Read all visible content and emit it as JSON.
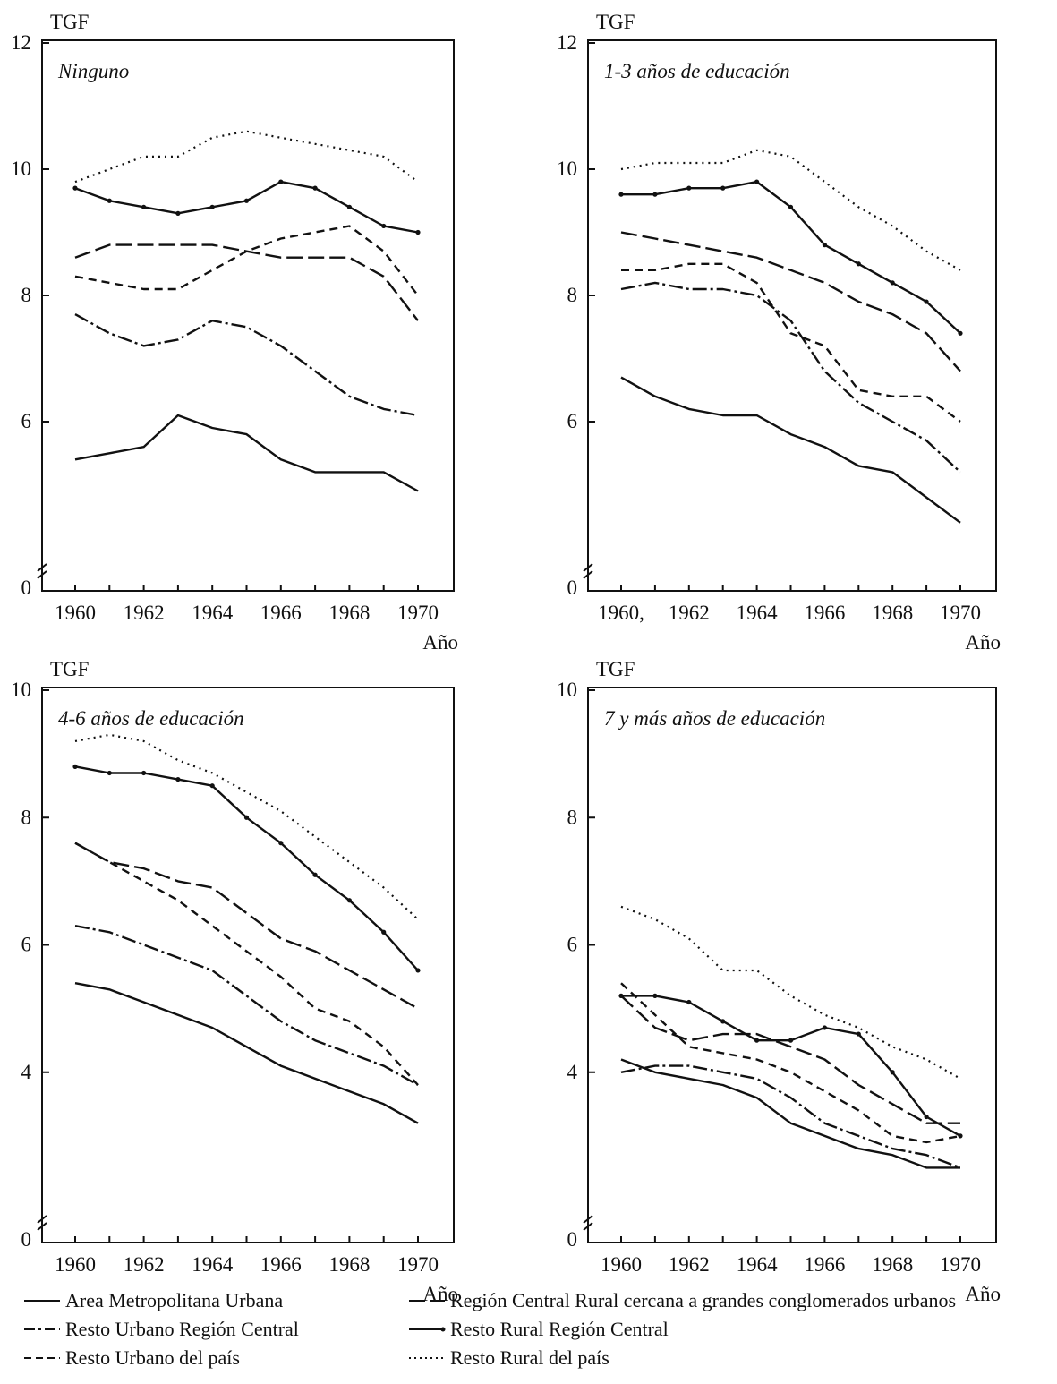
{
  "chart_data": [
    {
      "type": "line",
      "title": "Ninguno",
      "ylabel": "TGF",
      "xlabel": "Año",
      "x": [
        1960,
        1961,
        1962,
        1963,
        1964,
        1965,
        1966,
        1967,
        1968,
        1969,
        1970
      ],
      "xticks": [
        "1960",
        "1962",
        "1964",
        "1966",
        "1968",
        "1970"
      ],
      "yticks": [
        "0",
        "6",
        "8",
        "10",
        "12"
      ],
      "ylim": [
        4.0,
        12
      ],
      "axis_break": true,
      "series": [
        {
          "name": "Area Metropolitana Urbana",
          "values": [
            5.4,
            5.5,
            5.6,
            6.1,
            5.9,
            5.8,
            5.4,
            5.2,
            5.2,
            5.2,
            4.9
          ]
        },
        {
          "name": "Resto Urbano Región Central",
          "values": [
            7.7,
            7.4,
            7.2,
            7.3,
            7.6,
            7.5,
            7.2,
            6.8,
            6.4,
            6.2,
            6.1
          ]
        },
        {
          "name": "Resto Urbano del país",
          "values": [
            8.3,
            8.2,
            8.1,
            8.1,
            8.4,
            8.7,
            8.9,
            9.0,
            9.1,
            8.7,
            8.0
          ]
        },
        {
          "name": "Región Central Rural cercana a grandes conglomerados urbanos",
          "values": [
            8.6,
            8.8,
            8.8,
            8.8,
            8.8,
            8.7,
            8.6,
            8.6,
            8.6,
            8.3,
            7.6
          ]
        },
        {
          "name": "Resto Rural Región Central",
          "values": [
            9.7,
            9.5,
            9.4,
            9.3,
            9.4,
            9.5,
            9.8,
            9.7,
            9.4,
            9.1,
            9.0
          ]
        },
        {
          "name": "Resto Rural del país",
          "values": [
            9.8,
            10.0,
            10.2,
            10.2,
            10.5,
            10.6,
            10.5,
            10.4,
            10.3,
            10.2,
            9.8
          ]
        }
      ]
    },
    {
      "type": "line",
      "title": "1-3 años de educación",
      "ylabel": "TGF",
      "xlabel": "Año",
      "x": [
        1960,
        1961,
        1962,
        1963,
        1964,
        1965,
        1966,
        1967,
        1968,
        1969,
        1970
      ],
      "xticks": [
        "1960,",
        "1962",
        "1964",
        "1966",
        "1968",
        "1970"
      ],
      "yticks": [
        "0",
        "6",
        "8",
        "10",
        "12"
      ],
      "ylim": [
        4.0,
        12
      ],
      "axis_break": true,
      "series": [
        {
          "name": "Area Metropolitana Urbana",
          "values": [
            6.7,
            6.4,
            6.2,
            6.1,
            6.1,
            5.8,
            5.6,
            5.3,
            5.2,
            4.8,
            4.4
          ]
        },
        {
          "name": "Resto Urbano Región Central",
          "values": [
            8.1,
            8.2,
            8.1,
            8.1,
            8.0,
            7.6,
            6.8,
            6.3,
            6.0,
            5.7,
            5.2
          ]
        },
        {
          "name": "Resto Urbano del país",
          "values": [
            8.4,
            8.4,
            8.5,
            8.5,
            8.2,
            7.4,
            7.2,
            6.5,
            6.4,
            6.4,
            6.0
          ]
        },
        {
          "name": "Región Central Rural cercana a grandes conglomerados urbanos",
          "values": [
            9.0,
            8.9,
            8.8,
            8.7,
            8.6,
            8.4,
            8.2,
            7.9,
            7.7,
            7.4,
            6.8
          ]
        },
        {
          "name": "Resto Rural Región Central",
          "values": [
            9.6,
            9.6,
            9.7,
            9.7,
            9.8,
            9.4,
            8.8,
            8.5,
            8.2,
            7.9,
            7.4
          ]
        },
        {
          "name": "Resto Rural del país",
          "values": [
            10.0,
            10.1,
            10.1,
            10.1,
            10.3,
            10.2,
            9.8,
            9.4,
            9.1,
            8.7,
            8.4
          ]
        }
      ]
    },
    {
      "type": "line",
      "title": "4-6 años de educación",
      "ylabel": "TGF",
      "xlabel": "Año",
      "x": [
        1960,
        1961,
        1962,
        1963,
        1964,
        1965,
        1966,
        1967,
        1968,
        1969,
        1970
      ],
      "xticks": [
        "1960",
        "1962",
        "1964",
        "1966",
        "1968",
        "1970"
      ],
      "yticks": [
        "0",
        "4",
        "6",
        "8",
        "10"
      ],
      "ylim": [
        2.0,
        10
      ],
      "axis_break": true,
      "series": [
        {
          "name": "Area Metropolitana Urbana",
          "values": [
            5.4,
            5.3,
            5.1,
            4.9,
            4.7,
            4.4,
            4.1,
            3.9,
            3.7,
            3.5,
            3.2
          ]
        },
        {
          "name": "Resto Urbano Región Central",
          "values": [
            6.3,
            6.2,
            6.0,
            5.8,
            5.6,
            5.2,
            4.8,
            4.5,
            4.3,
            4.1,
            3.8
          ]
        },
        {
          "name": "Resto Urbano del país",
          "values": [
            7.6,
            7.3,
            7.0,
            6.7,
            6.3,
            5.9,
            5.5,
            5.0,
            4.8,
            4.4,
            3.8
          ]
        },
        {
          "name": "Región Central Rural cercana a grandes conglomerados urbanos",
          "values": [
            7.6,
            7.3,
            7.2,
            7.0,
            6.9,
            6.5,
            6.1,
            5.9,
            5.6,
            5.3,
            5.0
          ]
        },
        {
          "name": "Resto Rural Región Central",
          "values": [
            8.8,
            8.7,
            8.7,
            8.6,
            8.5,
            8.0,
            7.6,
            7.1,
            6.7,
            6.2,
            5.6
          ]
        },
        {
          "name": "Resto Rural del país",
          "values": [
            9.2,
            9.3,
            9.2,
            8.9,
            8.7,
            8.4,
            8.1,
            7.7,
            7.3,
            6.9,
            6.4
          ]
        }
      ]
    },
    {
      "type": "line",
      "title": "7 y más años de educación",
      "ylabel": "TGF",
      "xlabel": "Año",
      "x": [
        1960,
        1961,
        1962,
        1963,
        1964,
        1965,
        1966,
        1967,
        1968,
        1969,
        1970
      ],
      "xticks": [
        "1960",
        "1962",
        "1964",
        "1966",
        "1968",
        "1970"
      ],
      "yticks": [
        "0",
        "4",
        "6",
        "8",
        "10"
      ],
      "ylim": [
        2.0,
        10
      ],
      "axis_break": true,
      "series": [
        {
          "name": "Area Metropolitana Urbana",
          "values": [
            4.2,
            4.0,
            3.9,
            3.8,
            3.6,
            3.2,
            3.0,
            2.8,
            2.7,
            2.5,
            2.5
          ]
        },
        {
          "name": "Resto Urbano Región Central",
          "values": [
            4.0,
            4.1,
            4.1,
            4.0,
            3.9,
            3.6,
            3.2,
            3.0,
            2.8,
            2.7,
            2.5
          ]
        },
        {
          "name": "Resto Urbano del país",
          "values": [
            5.4,
            4.9,
            4.4,
            4.3,
            4.2,
            4.0,
            3.7,
            3.4,
            3.0,
            2.9,
            3.0
          ]
        },
        {
          "name": "Región Central Rural cercana a grandes conglomerados urbanos",
          "values": [
            5.2,
            4.7,
            4.5,
            4.6,
            4.6,
            4.4,
            4.2,
            3.8,
            3.5,
            3.2,
            3.2
          ]
        },
        {
          "name": "Resto Rural Región Central",
          "values": [
            5.2,
            5.2,
            5.1,
            4.8,
            4.5,
            4.5,
            4.7,
            4.6,
            4.0,
            3.3,
            3.0
          ]
        },
        {
          "name": "Resto Rural del país",
          "values": [
            6.6,
            6.4,
            6.1,
            5.6,
            5.6,
            5.2,
            4.9,
            4.7,
            4.4,
            4.2,
            3.9
          ]
        }
      ]
    }
  ],
  "legend": [
    {
      "label": "Area Metropolitana Urbana",
      "style": "solid"
    },
    {
      "label": "Región Central Rural cercana a grandes conglomerados urbanos",
      "style": "long-dash"
    },
    {
      "label": "Resto Urbano Región Central",
      "style": "dash-dot"
    },
    {
      "label": "Resto Rural Región Central",
      "style": "solid-dot"
    },
    {
      "label": "Resto Urbano del país",
      "style": "dash"
    },
    {
      "label": "Resto Rural del país",
      "style": "dotted"
    }
  ],
  "line_color": "#111111"
}
